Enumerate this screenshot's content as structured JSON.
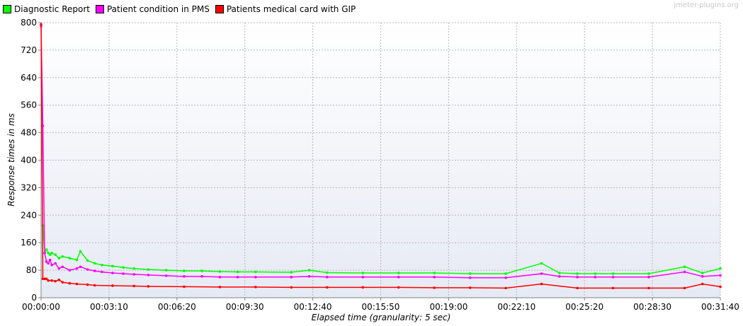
{
  "watermark": "jmeter-plugins.org",
  "chart_data": {
    "type": "line",
    "xlabel": "Elapsed time (granularity: 5 sec)",
    "ylabel": "Response times in ms",
    "ylim": [
      0,
      800
    ],
    "y_ticks": [
      0,
      80,
      160,
      240,
      320,
      400,
      480,
      560,
      640,
      720,
      800
    ],
    "x_range_seconds": [
      0,
      1900
    ],
    "x_tick_labels": [
      "00:00:00",
      "00:03:10",
      "00:06:20",
      "00:09:30",
      "00:12:40",
      "00:15:50",
      "00:19:00",
      "00:22:10",
      "00:25:20",
      "00:28:30",
      "00:31:40"
    ],
    "grid": true,
    "legend_position": "top-left",
    "granularity_seconds": 5,
    "series": [
      {
        "name": "Diagnostic Report",
        "color": "#00ff00",
        "x_seconds": [
          5,
          10,
          15,
          20,
          25,
          30,
          40,
          50,
          60,
          80,
          100,
          110,
          130,
          150,
          170,
          200,
          230,
          260,
          300,
          350,
          400,
          450,
          500,
          550,
          600,
          700,
          750,
          800,
          900,
          1000,
          1100,
          1200,
          1300,
          1400,
          1450,
          1500,
          1550,
          1600,
          1700,
          1800,
          1850,
          1900
        ],
        "values": [
          210,
          130,
          140,
          130,
          125,
          130,
          125,
          115,
          120,
          115,
          110,
          135,
          108,
          100,
          95,
          92,
          88,
          85,
          82,
          80,
          78,
          78,
          76,
          75,
          75,
          74,
          80,
          73,
          72,
          72,
          72,
          70,
          70,
          100,
          72,
          70,
          70,
          70,
          70,
          90,
          72,
          85
        ]
      },
      {
        "name": "Patient condition in PMS",
        "color": "#ff00ff",
        "x_seconds": [
          0,
          5,
          10,
          15,
          20,
          25,
          30,
          40,
          50,
          60,
          80,
          100,
          110,
          130,
          150,
          170,
          200,
          230,
          260,
          300,
          350,
          400,
          450,
          500,
          550,
          600,
          700,
          750,
          800,
          900,
          1000,
          1100,
          1200,
          1300,
          1400,
          1450,
          1500,
          1550,
          1600,
          1700,
          1800,
          1850,
          1900
        ],
        "values": [
          790,
          500,
          130,
          105,
          100,
          110,
          95,
          100,
          85,
          90,
          80,
          85,
          90,
          82,
          78,
          75,
          72,
          70,
          68,
          66,
          64,
          62,
          62,
          60,
          60,
          60,
          60,
          62,
          60,
          60,
          60,
          60,
          58,
          58,
          70,
          62,
          60,
          60,
          60,
          60,
          75,
          62,
          65
        ]
      },
      {
        "name": "Patients medical card with GIP",
        "color": "#ff0000",
        "x_seconds": [
          0,
          5,
          10,
          15,
          20,
          30,
          40,
          50,
          60,
          80,
          100,
          130,
          150,
          200,
          260,
          300,
          400,
          500,
          600,
          700,
          800,
          900,
          1000,
          1100,
          1200,
          1300,
          1400,
          1500,
          1600,
          1700,
          1800,
          1850,
          1900
        ],
        "values": [
          795,
          55,
          55,
          55,
          50,
          50,
          48,
          52,
          45,
          42,
          40,
          38,
          36,
          35,
          34,
          33,
          32,
          31,
          31,
          30,
          30,
          30,
          30,
          29,
          29,
          28,
          40,
          28,
          28,
          28,
          28,
          40,
          32
        ]
      }
    ]
  }
}
